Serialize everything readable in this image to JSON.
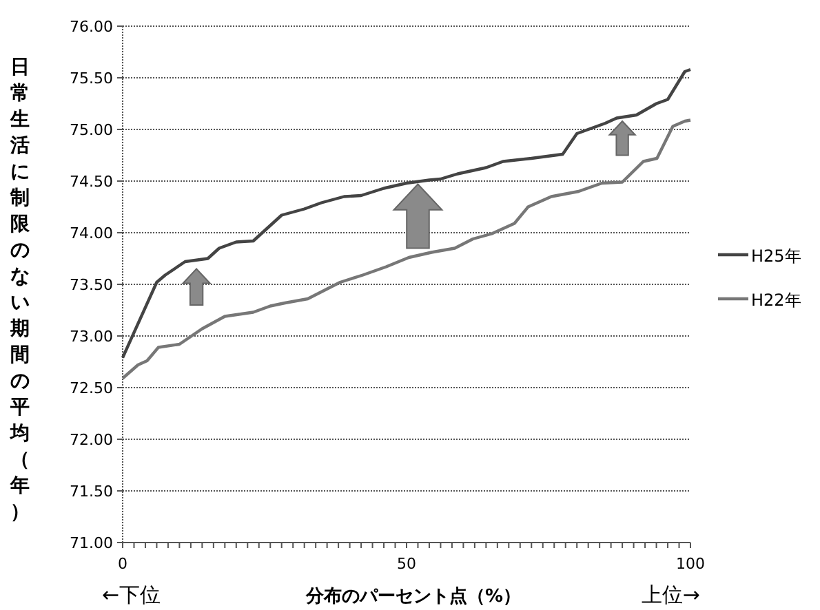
{
  "chart_data": {
    "type": "line",
    "xlabel": "分布のパーセント点（%）",
    "ylabel": "日常生活に制限のない期間の平均（年）",
    "annotations": [
      "←下位",
      "上位→"
    ],
    "series": [
      {
        "name": "H25年",
        "color": "#444444",
        "x": [
          0,
          6,
          7.5,
          11,
          15,
          17,
          20,
          23,
          28,
          32,
          35,
          39,
          42,
          46,
          50,
          54,
          56,
          59,
          64,
          67,
          72,
          77.5,
          80,
          85,
          87,
          90.5,
          94,
          96,
          99,
          100
        ],
        "values": [
          72.79,
          73.52,
          73.59,
          73.72,
          73.75,
          73.85,
          73.91,
          73.92,
          74.17,
          74.23,
          74.29,
          74.35,
          74.36,
          74.43,
          74.48,
          74.51,
          74.52,
          74.57,
          74.63,
          74.69,
          74.72,
          74.76,
          74.96,
          75.06,
          75.11,
          75.14,
          75.25,
          75.29,
          75.56,
          75.58
        ]
      },
      {
        "name": "H22年",
        "color": "#777777",
        "x": [
          0,
          2.7,
          4.3,
          6.3,
          10,
          14,
          18,
          23,
          26,
          28.6,
          32.6,
          38.3,
          42.3,
          46.4,
          50.4,
          54.4,
          58.5,
          61.7,
          65,
          69,
          71.4,
          75.5,
          80.3,
          84.4,
          88,
          91.7,
          94.1,
          96.9,
          99,
          100
        ],
        "values": [
          72.59,
          72.72,
          72.76,
          72.89,
          72.92,
          73.07,
          73.19,
          73.23,
          73.29,
          73.32,
          73.36,
          73.52,
          73.59,
          73.67,
          73.76,
          73.81,
          73.85,
          73.94,
          73.99,
          74.09,
          74.25,
          74.35,
          74.4,
          74.48,
          74.49,
          74.69,
          74.72,
          75.03,
          75.08,
          75.09
        ]
      }
    ],
    "xlim": [
      0,
      100
    ],
    "xticks": [
      0,
      {
        "value": 2,
        "label": null
      },
      {
        "value": 4,
        "label": null
      },
      {
        "value": 6,
        "label": null
      },
      {
        "value": 8,
        "label": null
      },
      {
        "value": 10,
        "label": null
      },
      {
        "value": 12,
        "label": null
      },
      {
        "value": 14,
        "label": null
      },
      {
        "value": 16,
        "label": null
      },
      {
        "value": 18,
        "label": null
      },
      {
        "value": 20,
        "label": null
      },
      {
        "value": 22,
        "label": null
      },
      {
        "value": 24,
        "label": null
      },
      {
        "value": 26,
        "label": null
      },
      {
        "value": 28,
        "label": null
      },
      {
        "value": 30,
        "label": null
      },
      {
        "value": 32,
        "label": null
      },
      {
        "value": 34,
        "label": null
      },
      {
        "value": 36,
        "label": null
      },
      {
        "value": 38,
        "label": null
      },
      {
        "value": 40,
        "label": null
      },
      {
        "value": 42,
        "label": null
      },
      {
        "value": 44,
        "label": null
      },
      {
        "value": 46,
        "label": null
      },
      {
        "value": 48,
        "label": null
      },
      50,
      {
        "value": 52,
        "label": null
      },
      {
        "value": 54,
        "label": null
      },
      {
        "value": 56,
        "label": null
      },
      {
        "value": 58,
        "label": null
      },
      {
        "value": 60,
        "label": null
      },
      {
        "value": 62,
        "label": null
      },
      {
        "value": 64,
        "label": null
      },
      {
        "value": 66,
        "label": null
      },
      {
        "value": 68,
        "label": null
      },
      {
        "value": 70,
        "label": null
      },
      {
        "value": 72,
        "label": null
      },
      {
        "value": 74,
        "label": null
      },
      {
        "value": 76,
        "label": null
      },
      {
        "value": 78,
        "label": null
      },
      {
        "value": 80,
        "label": null
      },
      {
        "value": 82,
        "label": null
      },
      {
        "value": 84,
        "label": null
      },
      {
        "value": 86,
        "label": null
      },
      {
        "value": 88,
        "label": null
      },
      {
        "value": 90,
        "label": null
      },
      {
        "value": 92,
        "label": null
      },
      {
        "value": 94,
        "label": null
      },
      {
        "value": 96,
        "label": null
      },
      {
        "value": 98,
        "label": null
      },
      100
    ],
    "ylim": [
      71,
      76
    ],
    "yticks": [
      {
        "value": 71,
        "label": "71.00"
      },
      {
        "value": 71.5,
        "label": "71.50"
      },
      {
        "value": 72,
        "label": "72.00"
      },
      {
        "value": 72.5,
        "label": "72.50"
      },
      {
        "value": 73,
        "label": "73.00"
      },
      {
        "value": 73.5,
        "label": "73.50"
      },
      {
        "value": 74,
        "label": "74.00"
      },
      {
        "value": 74.5,
        "label": "74.50"
      },
      {
        "value": 75,
        "label": "75.00"
      },
      {
        "value": 75.5,
        "label": "75.50"
      },
      {
        "value": 76,
        "label": "76.00"
      }
    ],
    "grid": "y",
    "legend": "right"
  }
}
